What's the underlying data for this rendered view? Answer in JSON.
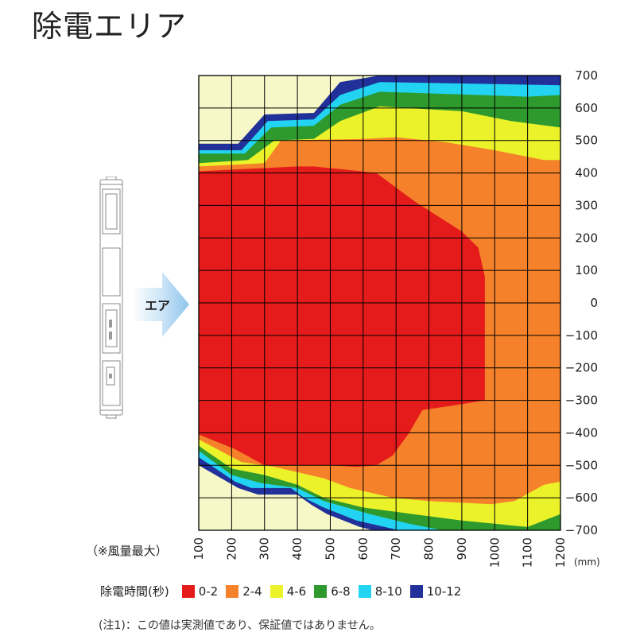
{
  "page": {
    "title": "除電エリア",
    "air_label": "エア"
  },
  "notes": {
    "wind": "（※風量最大）",
    "unit": "(mm)",
    "footnote": "(注1)：この値は実測値であり、保証値ではありません。"
  },
  "colors": {
    "background_zone": "#f7f8c8",
    "z0_2": "#e51b1b",
    "z2_4": "#f5822a",
    "z4_6": "#ecf22a",
    "z6_8": "#2e9a2e",
    "z8_10": "#22d4f2",
    "z10_12": "#22319a"
  },
  "chart_data": {
    "type": "heatmap",
    "title": "",
    "x": [
      100,
      200,
      300,
      400,
      500,
      600,
      700,
      800,
      900,
      1000,
      1100,
      1200
    ],
    "y_ticks": [
      700,
      600,
      500,
      400,
      300,
      200,
      100,
      0,
      -100,
      -200,
      -300,
      -400,
      -500,
      -600,
      -700
    ],
    "xlim": [
      100,
      1200
    ],
    "ylim": [
      -700,
      700
    ],
    "x_unit": "(mm)",
    "grid": true,
    "legend": {
      "title": "除電時間(秒)",
      "entries": [
        {
          "label": "0-2",
          "color": "#e51b1b"
        },
        {
          "label": "2-4",
          "color": "#f5822a"
        },
        {
          "label": "4-6",
          "color": "#ecf22a"
        },
        {
          "label": "6-8",
          "color": "#2e9a2e"
        },
        {
          "label": "8-10",
          "color": "#22d4f2"
        },
        {
          "label": "10-12",
          "color": "#22319a"
        }
      ]
    },
    "zones": [
      {
        "range": "10-12",
        "color": "#22319a",
        "points": [
          [
            100,
            490
          ],
          [
            220,
            490
          ],
          [
            300,
            580
          ],
          [
            450,
            585
          ],
          [
            530,
            680
          ],
          [
            650,
            700
          ],
          [
            1200,
            700
          ],
          [
            1200,
            -700
          ],
          [
            630,
            -700
          ],
          [
            590,
            -690
          ],
          [
            490,
            -650
          ],
          [
            440,
            -620
          ],
          [
            400,
            -590
          ],
          [
            280,
            -590
          ],
          [
            220,
            -570
          ],
          [
            100,
            -500
          ]
        ]
      },
      {
        "range": "8-10",
        "color": "#22d4f2",
        "points": [
          [
            100,
            470
          ],
          [
            230,
            470
          ],
          [
            310,
            560
          ],
          [
            450,
            565
          ],
          [
            530,
            640
          ],
          [
            650,
            680
          ],
          [
            1200,
            670
          ],
          [
            1200,
            -700
          ],
          [
            710,
            -700
          ],
          [
            580,
            -670
          ],
          [
            480,
            -630
          ],
          [
            420,
            -600
          ],
          [
            380,
            -570
          ],
          [
            260,
            -570
          ],
          [
            210,
            -550
          ],
          [
            100,
            -475
          ]
        ]
      },
      {
        "range": "6-8",
        "color": "#2e9a2e",
        "points": [
          [
            100,
            460
          ],
          [
            240,
            460
          ],
          [
            320,
            540
          ],
          [
            450,
            545
          ],
          [
            530,
            610
          ],
          [
            650,
            650
          ],
          [
            1100,
            635
          ],
          [
            1200,
            640
          ],
          [
            1200,
            -700
          ],
          [
            840,
            -700
          ],
          [
            740,
            -680
          ],
          [
            620,
            -650
          ],
          [
            480,
            -610
          ],
          [
            400,
            -570
          ],
          [
            290,
            -555
          ],
          [
            200,
            -530
          ],
          [
            100,
            -455
          ]
        ]
      },
      {
        "range": "4-6",
        "color": "#ecf22a",
        "points": [
          [
            100,
            430
          ],
          [
            250,
            440
          ],
          [
            330,
            500
          ],
          [
            450,
            505
          ],
          [
            530,
            560
          ],
          [
            650,
            605
          ],
          [
            900,
            590
          ],
          [
            1050,
            560
          ],
          [
            1200,
            540
          ],
          [
            1200,
            -650
          ],
          [
            1100,
            -690
          ],
          [
            900,
            -670
          ],
          [
            750,
            -650
          ],
          [
            600,
            -630
          ],
          [
            480,
            -600
          ],
          [
            400,
            -560
          ],
          [
            300,
            -530
          ],
          [
            200,
            -510
          ],
          [
            100,
            -440
          ]
        ]
      },
      {
        "range": "2-4",
        "color": "#f5822a",
        "points": [
          [
            100,
            420
          ],
          [
            300,
            430
          ],
          [
            350,
            500
          ],
          [
            600,
            505
          ],
          [
            700,
            510
          ],
          [
            850,
            495
          ],
          [
            1000,
            470
          ],
          [
            1150,
            440
          ],
          [
            1200,
            440
          ],
          [
            1200,
            -550
          ],
          [
            1150,
            -560
          ],
          [
            1060,
            -610
          ],
          [
            990,
            -620
          ],
          [
            800,
            -610
          ],
          [
            690,
            -600
          ],
          [
            560,
            -570
          ],
          [
            480,
            -540
          ],
          [
            330,
            -505
          ],
          [
            230,
            -490
          ],
          [
            100,
            -420
          ]
        ]
      },
      {
        "range": "0-2",
        "color": "#e51b1b",
        "points": [
          [
            100,
            405
          ],
          [
            300,
            415
          ],
          [
            400,
            420
          ],
          [
            450,
            420
          ],
          [
            550,
            410
          ],
          [
            640,
            400
          ],
          [
            760,
            310
          ],
          [
            900,
            220
          ],
          [
            950,
            170
          ],
          [
            970,
            80
          ],
          [
            970,
            -300
          ],
          [
            880,
            -315
          ],
          [
            780,
            -330
          ],
          [
            740,
            -400
          ],
          [
            690,
            -470
          ],
          [
            640,
            -500
          ],
          [
            580,
            -505
          ],
          [
            500,
            -500
          ],
          [
            400,
            -500
          ],
          [
            300,
            -500
          ],
          [
            210,
            -450
          ],
          [
            100,
            -405
          ]
        ]
      }
    ]
  }
}
